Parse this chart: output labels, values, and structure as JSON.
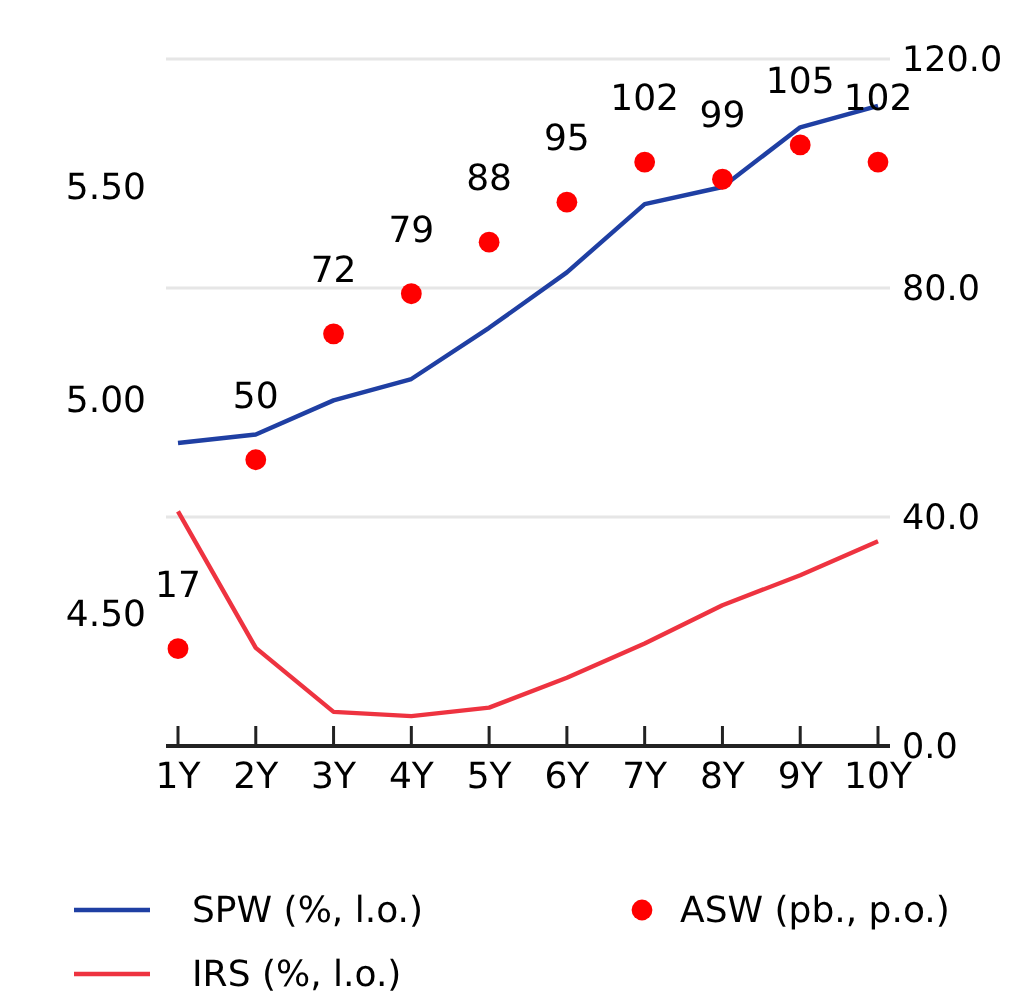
{
  "chart_data": {
    "type": "line",
    "categories": [
      "1Y",
      "2Y",
      "3Y",
      "4Y",
      "5Y",
      "6Y",
      "7Y",
      "8Y",
      "9Y",
      "10Y"
    ],
    "ylim": [
      4.19,
      5.8
    ],
    "yticks": [
      {
        "value": 4.5,
        "label": "4.50"
      },
      {
        "value": 5,
        "label": "5.00"
      },
      {
        "value": 5.5,
        "label": "5.50"
      }
    ],
    "y2lim": [
      0,
      120
    ],
    "y2ticks": [
      {
        "value": 0,
        "label": "0.0"
      },
      {
        "value": 40,
        "label": "40.0"
      },
      {
        "value": 80,
        "label": "80.0"
      },
      {
        "value": 120,
        "label": "120.0"
      }
    ],
    "grid": true,
    "legend": "bottom",
    "series": [
      {
        "name": "SPW (%, l.o.)",
        "color": "#1f3fa3",
        "values": [
          4.9,
          4.92,
          5.0,
          5.05,
          5.17,
          5.3,
          5.46,
          5.5,
          5.64,
          5.69
        ]
      },
      {
        "name": "ASW (pb., p.o.)",
        "type": "scatter",
        "axis": "y2",
        "marker": "circle",
        "color": "#ff0000",
        "values": [
          17,
          50,
          72,
          79,
          88,
          95,
          102,
          99,
          105,
          102
        ],
        "value_labels": [
          "17",
          "50",
          "72",
          "79",
          "88",
          "95",
          "102",
          "99",
          "105",
          "102"
        ]
      },
      {
        "name": "IRS (%, l.o.)",
        "color": "#ee3340",
        "values": [
          4.74,
          4.42,
          4.27,
          4.26,
          4.28,
          4.35,
          4.43,
          4.52,
          4.59,
          4.67
        ]
      }
    ]
  }
}
